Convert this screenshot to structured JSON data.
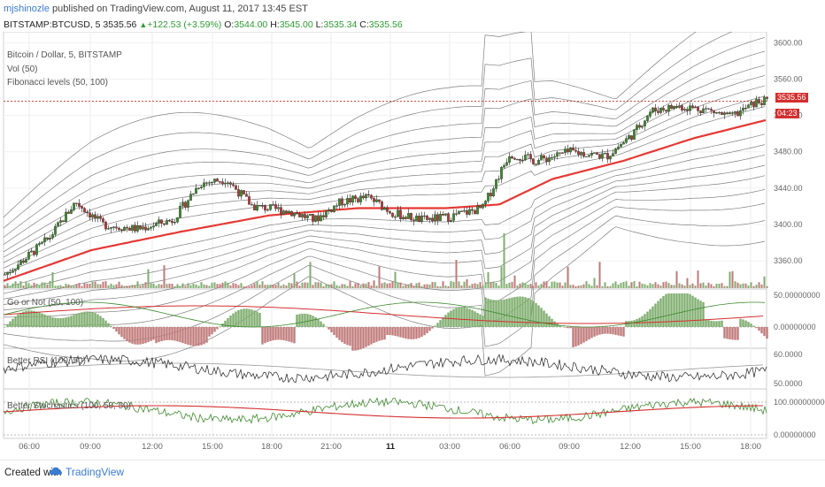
{
  "header": {
    "user": "mjshinozle",
    "published": "published on TradingView.com, August 11, 2017 13:45 EST"
  },
  "symbol_bar": {
    "symbol": "BITSTAMP:BTCUSD, 5",
    "last": "3535.56",
    "change": "+122.53 (+3.59%)",
    "open_label": "O:",
    "open": "3544.00",
    "high_label": "H:",
    "high": "3545.00",
    "low_label": "L:",
    "low": "3535.34",
    "close_label": "C:",
    "close": "3535.56"
  },
  "legend": {
    "title": "Bitcoin / Dollar, 5, BITSTAMP",
    "vol": "Vol (50)",
    "fib": "Fibonacci levels (50, 100)"
  },
  "price_axis": {
    "ticks": [
      "3600.00",
      "3560.00",
      "3520.00",
      "3480.00",
      "3440.00",
      "3400.00",
      "3360.00"
    ],
    "last_tag": "3535.56",
    "countdown_tag": "04:23"
  },
  "panes": {
    "go_or_not": {
      "title": "Go or Not (50, 100)",
      "ticks": [
        "50.00000000",
        "0.00000000"
      ]
    },
    "better_rsi": {
      "title": "Better RSI (100, 50)",
      "ticks": [
        "60.0000",
        "50.0000"
      ]
    },
    "better_stoch": {
      "title": "Better Stochastics (100, 50, 50)",
      "ticks": [
        "100.000000000",
        "0.00000000"
      ]
    }
  },
  "time_axis": {
    "labels": [
      "06:00",
      "09:00",
      "12:00",
      "15:00",
      "18:00",
      "21:00",
      "11",
      "03:00",
      "06:00",
      "09:00",
      "12:00",
      "15:00",
      "18:00"
    ]
  },
  "footer": {
    "created": "Created with",
    "brand": "TradingView"
  },
  "colors": {
    "up": "#3e8a2e",
    "down": "#b03a3a",
    "ma": "#e53935",
    "band": "#555555",
    "last_line": "#d32f2f"
  },
  "chart_data": {
    "type": "candlestick",
    "title": "Bitcoin / Dollar, 5, BITSTAMP",
    "ylim": [
      3330,
      3610
    ],
    "x_tick_labels": [
      "06:00",
      "09:00",
      "12:00",
      "15:00",
      "18:00",
      "21:00",
      "11",
      "03:00",
      "06:00",
      "09:00",
      "12:00",
      "15:00",
      "18:00"
    ],
    "price_anchors": [
      [
        0,
        3345
      ],
      [
        20,
        3360
      ],
      [
        50,
        3385
      ],
      [
        80,
        3425
      ],
      [
        110,
        3400
      ],
      [
        150,
        3395
      ],
      [
        190,
        3405
      ],
      [
        220,
        3445
      ],
      [
        250,
        3450
      ],
      [
        280,
        3420
      ],
      [
        320,
        3415
      ],
      [
        350,
        3405
      ],
      [
        380,
        3425
      ],
      [
        410,
        3430
      ],
      [
        440,
        3412
      ],
      [
        470,
        3405
      ],
      [
        500,
        3408
      ],
      [
        540,
        3418
      ],
      [
        570,
        3478
      ],
      [
        600,
        3470
      ],
      [
        640,
        3480
      ],
      [
        680,
        3475
      ],
      [
        710,
        3500
      ],
      [
        730,
        3525
      ],
      [
        760,
        3530
      ],
      [
        790,
        3527
      ],
      [
        820,
        3518
      ],
      [
        850,
        3535
      ],
      [
        862,
        3535.56
      ]
    ],
    "ma_anchors": [
      [
        0,
        3338
      ],
      [
        100,
        3372
      ],
      [
        200,
        3392
      ],
      [
        300,
        3410
      ],
      [
        400,
        3418
      ],
      [
        500,
        3418
      ],
      [
        560,
        3422
      ],
      [
        620,
        3450
      ],
      [
        700,
        3470
      ],
      [
        780,
        3495
      ],
      [
        862,
        3515
      ]
    ],
    "last_price": 3535.56
  }
}
